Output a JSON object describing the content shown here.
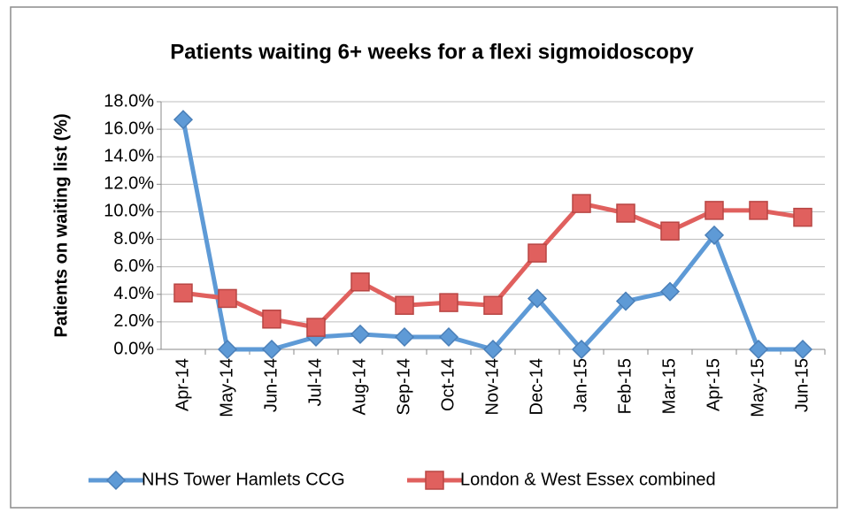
{
  "chart_data": {
    "type": "line",
    "title": "Patients waiting 6+ weeks for a flexi sigmoidoscopy",
    "y_label": "Patients on waiting list (%)",
    "categories": [
      "Apr-14",
      "May-14",
      "Jun-14",
      "Jul-14",
      "Aug-14",
      "Sep-14",
      "Oct-14",
      "Nov-14",
      "Dec-14",
      "Jan-15",
      "Feb-15",
      "Mar-15",
      "Apr-15",
      "May-15",
      "Jun-15"
    ],
    "series": [
      {
        "name": "NHS Tower Hamlets CCG",
        "color": "#5e9ad6",
        "marker": "diamond",
        "values": [
          16.7,
          0,
          0,
          0.9,
          1.1,
          0.9,
          0.9,
          0,
          3.7,
          0,
          3.5,
          4.2,
          8.3,
          0,
          0
        ]
      },
      {
        "name": "London & West Essex combined",
        "color": "#e0605e",
        "marker": "square",
        "values": [
          4.1,
          3.7,
          2.2,
          1.6,
          4.9,
          3.2,
          3.4,
          3.2,
          7.0,
          10.6,
          9.9,
          8.6,
          10.1,
          10.1,
          9.6
        ]
      }
    ],
    "ylim": [
      0,
      18
    ],
    "yticks": [
      {
        "value": 0,
        "label": "0.0%"
      },
      {
        "value": 2,
        "label": "2.0%"
      },
      {
        "value": 4,
        "label": "4.0%"
      },
      {
        "value": 6,
        "label": "6.0%"
      },
      {
        "value": 8,
        "label": "8.0%"
      },
      {
        "value": 10,
        "label": "10.0%"
      },
      {
        "value": 12,
        "label": "12.0%"
      },
      {
        "value": 14,
        "label": "14.0%"
      },
      {
        "value": 16,
        "label": "16.0%"
      },
      {
        "value": 18,
        "label": "18.0%"
      }
    ],
    "grid": true,
    "legend": "bottom"
  }
}
